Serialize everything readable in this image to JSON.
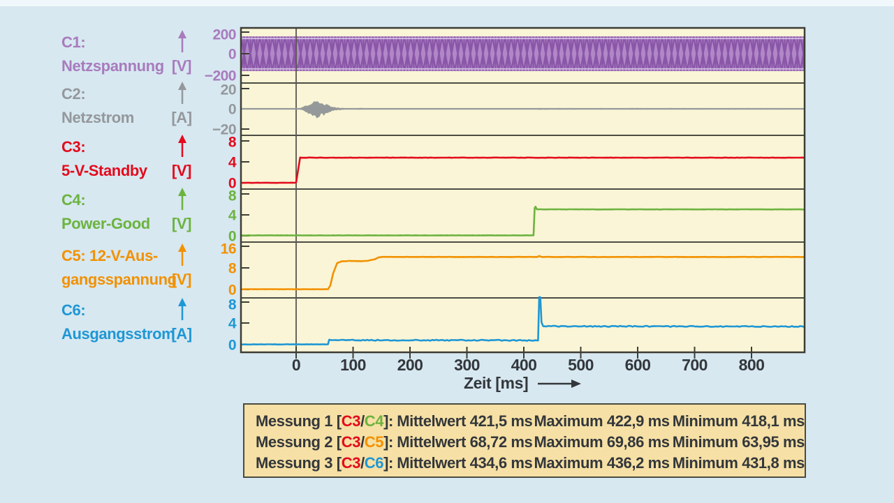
{
  "colors": {
    "background": "#d7e8f1",
    "plot_bg": "#faf5d6",
    "frame": "#3d3d35",
    "text_dark": "#33373b",
    "table_bg": "#f6e0a5",
    "c1_purple": "#a87bbd",
    "c2_gray": "#94989b",
    "c3_red": "#e30b1c",
    "c4_green": "#6cb33f",
    "c5_orange": "#f29100",
    "c6_blue": "#1f97d4"
  },
  "chart_data": {
    "type": "line",
    "layout": "stacked-oscilloscope-panels",
    "grid": false,
    "trigger_cursor_ms": 0,
    "x_axis": {
      "label": "Zeit [ms]",
      "tick_values": [
        0,
        100,
        200,
        300,
        400,
        500,
        600,
        700,
        800
      ],
      "tick_labels": [
        "0",
        "100",
        "200",
        "300",
        "400",
        "500",
        "600",
        "700",
        "800"
      ],
      "range_ms": [
        -97,
        893
      ]
    },
    "panels": [
      {
        "id": "C1",
        "label_line1": "C1:",
        "label_line2": "Netzspannung",
        "unit": "[V]",
        "color": "#a87bbd",
        "tick_values": [
          200,
          0,
          -200
        ],
        "tick_labels": [
          "200",
          "0",
          "−200"
        ],
        "waveform": "ac-band",
        "band_amplitude": 160
      },
      {
        "id": "C2",
        "label_line1": "C2:",
        "label_line2": "Netzstrom",
        "unit": "[A]",
        "color": "#94989b",
        "tick_values": [
          20,
          0,
          -20
        ],
        "tick_labels": [
          "20",
          "0",
          "−20"
        ],
        "waveform": "envelope",
        "envelope": [
          [
            2,
            0.15
          ],
          [
            8,
            0.8
          ],
          [
            14,
            2.2
          ],
          [
            22,
            4.8
          ],
          [
            30,
            6.8
          ],
          [
            38,
            7.4
          ],
          [
            46,
            6.2
          ],
          [
            54,
            4.0
          ],
          [
            62,
            2.2
          ],
          [
            70,
            1.3
          ],
          [
            80,
            0.8
          ],
          [
            92,
            0.55
          ],
          [
            105,
            0.5
          ],
          [
            112,
            0.78
          ],
          [
            122,
            0.6
          ],
          [
            135,
            0.4
          ],
          [
            400,
            0.35
          ],
          [
            418,
            0.4
          ],
          [
            428,
            0.75
          ],
          [
            450,
            0.6
          ],
          [
            893,
            0.6
          ]
        ]
      },
      {
        "id": "C3",
        "label_line1": "C3:",
        "label_line2": "5-V-Standby",
        "unit": "[V]",
        "color": "#e30b1c",
        "tick_values": [
          8,
          4,
          0
        ],
        "tick_labels": [
          "8",
          "4",
          "0"
        ],
        "waveform": "segments",
        "segments": [
          {
            "points": [
              [
                -97,
                0
              ],
              [
                -1,
                0
              ],
              [
                0,
                0.1
              ],
              [
                7,
                4.8
              ],
              [
                893,
                4.8
              ]
            ],
            "noise": 0.03
          }
        ]
      },
      {
        "id": "C4",
        "label_line1": "C4:",
        "label_line2": "Power-Good",
        "unit": "[V]",
        "color": "#6cb33f",
        "tick_values": [
          8,
          4,
          0
        ],
        "tick_labels": [
          "8",
          "4",
          "0"
        ],
        "waveform": "segments",
        "segments": [
          {
            "points": [
              [
                -97,
                0.08
              ],
              [
                417,
                0.08
              ],
              [
                419,
                5.3
              ],
              [
                420.5,
                5.55
              ],
              [
                423,
                5.05
              ],
              [
                893,
                5.05
              ]
            ],
            "noise": 0.02
          }
        ]
      },
      {
        "id": "C5",
        "label_line1": "C5: 12-V-Aus-",
        "label_line2": "gangsspannung",
        "unit": "[V]",
        "color": "#f29100",
        "tick_values": [
          16,
          8,
          0
        ],
        "tick_labels": [
          "16",
          "8",
          "0"
        ],
        "waveform": "segments",
        "segments": [
          {
            "points": [
              [
                -97,
                0.1
              ],
              [
                56,
                0.1
              ],
              [
                60,
                1.5
              ],
              [
                65,
                6.0
              ],
              [
                72,
                9.8
              ],
              [
                80,
                10.4
              ],
              [
                95,
                10.6
              ],
              [
                110,
                10.5
              ],
              [
                125,
                10.6
              ],
              [
                138,
                11.2
              ],
              [
                145,
                11.9
              ],
              [
                152,
                12.05
              ],
              [
                424,
                12.05
              ],
              [
                427,
                12.45
              ],
              [
                431,
                12.05
              ],
              [
                893,
                12.05
              ]
            ],
            "noise": 0.04
          }
        ]
      },
      {
        "id": "C6",
        "label_line1": "C6:",
        "label_line2": "Ausgangsstrom",
        "unit": "[A]",
        "color": "#1f97d4",
        "tick_values": [
          8,
          4,
          0
        ],
        "tick_labels": [
          "8",
          "4",
          "0"
        ],
        "waveform": "segments",
        "segments": [
          {
            "points": [
              [
                -97,
                0.05
              ],
              [
                56,
                0.05
              ],
              [
                58,
                0.95
              ],
              [
                62,
                0.85
              ]
            ],
            "noise": 0.03
          },
          {
            "points": [
              [
                62,
                0.85
              ],
              [
                420,
                0.8
              ]
            ],
            "noise": 0.09
          },
          {
            "points": [
              [
                420,
                0.8
              ],
              [
                425,
                0.75
              ],
              [
                427,
                8.9
              ],
              [
                429,
                8.9
              ],
              [
                431,
                4.2
              ],
              [
                434,
                3.5
              ],
              [
                440,
                3.45
              ]
            ],
            "noise": 0.05
          },
          {
            "points": [
              [
                440,
                3.45
              ],
              [
                893,
                3.4
              ]
            ],
            "noise": 0.09
          }
        ]
      }
    ]
  },
  "table": {
    "rows": [
      {
        "prefix": "Messung 1 [",
        "chan_a": "C3",
        "sep": "/",
        "chan_b": "C4",
        "suffix": "]:",
        "mittelwert": "Mittelwert 421,5 ms",
        "maximum": "Maximum 422,9 ms",
        "minimum": "Minimum 418,1 ms"
      },
      {
        "prefix": "Messung 2 [",
        "chan_a": "C3",
        "sep": "/",
        "chan_b": "C5",
        "suffix": "]:",
        "mittelwert": "Mittelwert 68,72 ms",
        "maximum": "Maximum 69,86 ms",
        "minimum": "Minimum 63,95 ms"
      },
      {
        "prefix": "Messung 3 [",
        "chan_a": "C3",
        "sep": "/",
        "chan_b": "C6",
        "suffix": "]:",
        "mittelwert": "Mittelwert 434,6 ms",
        "maximum": "Maximum 436,2 ms",
        "minimum": "Minimum 431,8 ms"
      }
    ]
  }
}
